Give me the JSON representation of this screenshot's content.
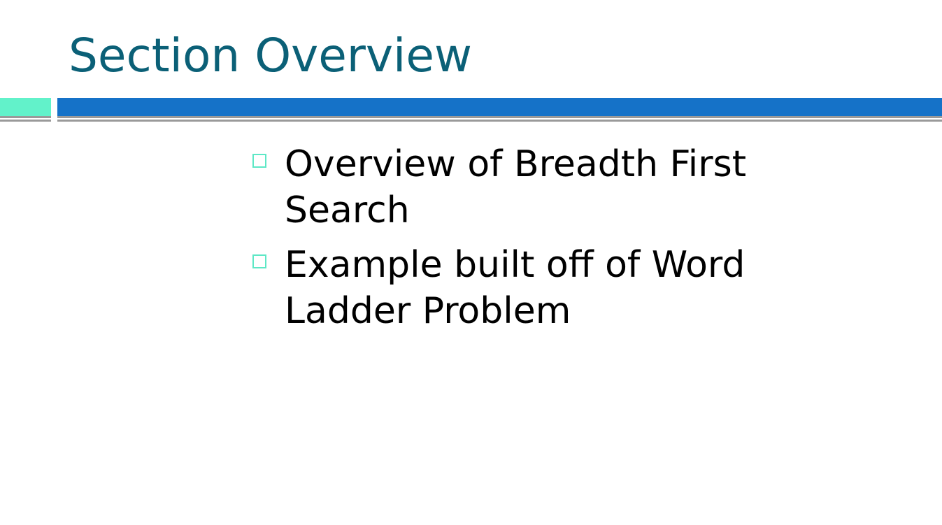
{
  "slide": {
    "title": "Section Overview",
    "colors": {
      "title": "#0b6077",
      "accent_left": "#62f2ca",
      "accent_right": "#1572c8",
      "rule": "#9a9a9a",
      "bullet_marker": "#5ee8c6"
    },
    "bullets": [
      {
        "text": "Overview of Breadth First Search"
      },
      {
        "text": "Example built off of Word Ladder Problem"
      }
    ]
  }
}
